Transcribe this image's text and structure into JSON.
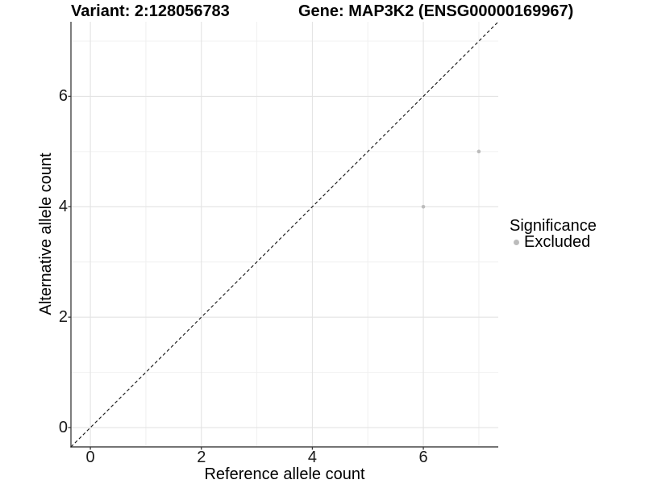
{
  "chart_data": {
    "type": "scatter",
    "title_left": "Variant: 2:128056783",
    "title_right": "Gene: MAP3K2 (ENSG00000169967)",
    "xlabel": "Reference allele count",
    "ylabel": "Alternative allele count",
    "xlim": [
      -0.35,
      7.35
    ],
    "ylim": [
      -0.35,
      7.35
    ],
    "x_ticks": [
      0,
      2,
      4,
      6
    ],
    "y_ticks": [
      0,
      2,
      4,
      6
    ],
    "x_minor": [
      1,
      3,
      5,
      7
    ],
    "y_minor": [
      1,
      3,
      5,
      7
    ],
    "grid": "major+minor",
    "identity_line": {
      "style": "dashed",
      "from_xy": [
        -0.35,
        -0.35
      ],
      "to_xy": [
        7.35,
        7.35
      ]
    },
    "series": [
      {
        "name": "Excluded",
        "marker": "circle",
        "color": "#bcbcbc",
        "points": [
          {
            "x": 6,
            "y": 4
          },
          {
            "x": 7,
            "y": 5
          }
        ]
      }
    ],
    "legend": {
      "position": "right",
      "title": "Significance",
      "items": [
        {
          "label": "Excluded",
          "marker": "circle",
          "color": "#bcbcbc"
        }
      ]
    }
  },
  "colors": {
    "background": "#ffffff",
    "text": "#000000",
    "tick_text": "#1a1a1a",
    "axis_line": "#474747",
    "tick_mark": "#3a3a3a",
    "grid_major": "#e3e3e3",
    "grid_minor": "#f0f0f0",
    "identity_line": "#1a1a1a",
    "point": "#bcbcbc"
  }
}
